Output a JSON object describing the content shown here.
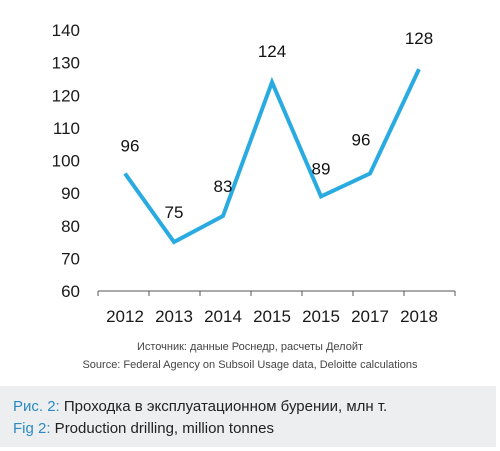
{
  "chart_data": {
    "type": "line",
    "categories": [
      "2012",
      "2013",
      "2014",
      "2015",
      "2015",
      "2017",
      "2018"
    ],
    "values": [
      96,
      75,
      83,
      124,
      89,
      96,
      128
    ],
    "data_labels": [
      "96",
      "75",
      "83",
      "124",
      "89",
      "96",
      "128"
    ],
    "y_ticks": [
      60,
      70,
      80,
      90,
      100,
      110,
      120,
      130,
      140
    ],
    "ylim": [
      60,
      140
    ],
    "line_color": "#29abe2",
    "grid": false
  },
  "source": {
    "ru": "Источник: данные Роснедр, расчеты Делойт",
    "en": "Source: Federal Agency on Subsoil Usage data, Deloitte calculations"
  },
  "caption": {
    "ru_prefix": "Рис. 2:",
    "ru_text": " Проходка в эксплуатационном бурении, млн т.",
    "en_prefix": "Fig 2:",
    "en_text": " Production drilling, million tonnes",
    "prefix_color": "#2b8bc4"
  }
}
